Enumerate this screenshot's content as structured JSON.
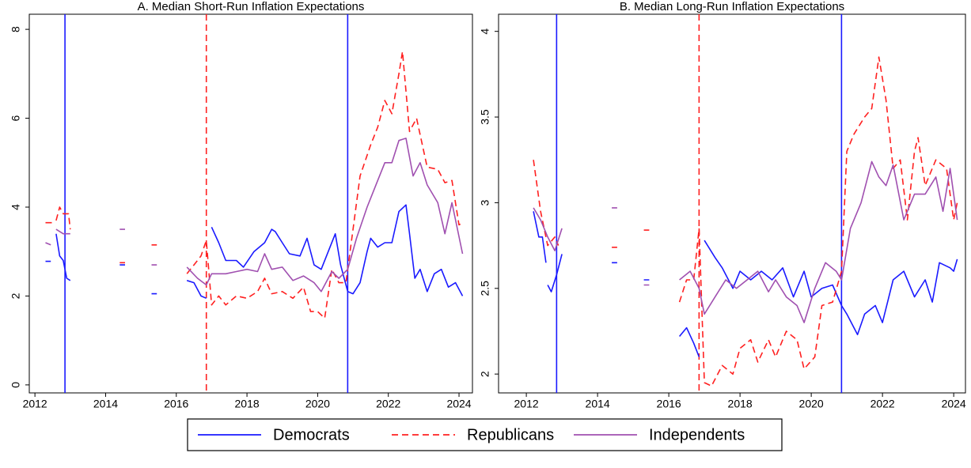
{
  "chart_data": [
    {
      "type": "line",
      "title": "A. Median Short-Run Inflation Expectations",
      "xlim": [
        2011.84,
        2024.38
      ],
      "ylim": [
        -0.18,
        8.34
      ],
      "xticks": [
        2012,
        2014,
        2016,
        2018,
        2020,
        2022,
        2024
      ],
      "yticks": [
        0,
        2,
        4,
        6,
        8
      ],
      "vlines": [
        {
          "x": 2012.85,
          "color": "#1a1aff"
        },
        {
          "x": 2016.85,
          "color": "#ff2020",
          "dash": true
        },
        {
          "x": 2020.85,
          "color": "#1a1aff"
        }
      ],
      "series": [
        {
          "name": "Democrats",
          "color": "#1a1aff",
          "x": [
            2012.3,
            2012.45,
            null,
            2012.6,
            2012.7,
            2012.8,
            2012.9,
            2013.0,
            null,
            2014.4,
            2014.55,
            null,
            2015.3,
            2015.45,
            null,
            2016.3,
            2016.5,
            2016.7,
            2016.85,
            null,
            2017.0,
            2017.2,
            2017.4,
            2017.7,
            2017.9,
            2018.2,
            2018.5,
            2018.7,
            2018.8,
            2019.0,
            2019.2,
            2019.5,
            2019.7,
            2019.9,
            2020.1,
            2020.3,
            2020.5,
            2020.65,
            2020.85,
            2021.0,
            2021.2,
            2021.4,
            2021.5,
            2021.7,
            2021.9,
            2022.1,
            2022.3,
            2022.5,
            2022.6,
            2022.75,
            2022.9,
            2023.1,
            2023.3,
            2023.5,
            2023.7,
            2023.9,
            2024.1
          ],
          "values": [
            2.78,
            2.78,
            null,
            3.4,
            2.9,
            2.8,
            2.4,
            2.35,
            null,
            2.7,
            2.7,
            null,
            2.05,
            2.05,
            null,
            2.35,
            2.3,
            2.0,
            1.95,
            null,
            3.55,
            3.2,
            2.8,
            2.8,
            2.65,
            3.0,
            3.2,
            3.5,
            3.45,
            3.2,
            2.95,
            2.9,
            3.3,
            2.7,
            2.6,
            3.0,
            3.4,
            2.7,
            2.1,
            2.05,
            2.3,
            3.0,
            3.3,
            3.1,
            3.2,
            3.2,
            3.9,
            4.05,
            3.4,
            2.4,
            2.6,
            2.1,
            2.5,
            2.6,
            2.2,
            2.3,
            2.0
          ]
        },
        {
          "name": "Republicans",
          "color": "#ff2020",
          "dash": true,
          "x": [
            2012.3,
            2012.5,
            null,
            2012.6,
            2012.7,
            2012.8,
            2012.95,
            2013.0,
            null,
            2014.4,
            2014.55,
            null,
            2015.3,
            2015.45,
            null,
            2016.3,
            2016.5,
            2016.7,
            2016.85,
            2017.0,
            2017.2,
            2017.4,
            2017.7,
            2018.0,
            2018.3,
            2018.5,
            2018.7,
            2019.0,
            2019.3,
            2019.6,
            2019.8,
            2020.0,
            2020.2,
            2020.4,
            2020.6,
            2020.8,
            2021.0,
            2021.2,
            2021.5,
            2021.7,
            2021.9,
            2022.1,
            2022.3,
            2022.4,
            2022.6,
            2022.8,
            2023.1,
            2023.4,
            2023.6,
            2023.8,
            2024.0,
            2024.1
          ],
          "values": [
            3.65,
            3.65,
            null,
            3.7,
            4.0,
            3.85,
            3.85,
            3.5,
            null,
            2.75,
            2.75,
            null,
            3.15,
            3.15,
            null,
            2.5,
            2.7,
            2.9,
            3.25,
            1.8,
            2.0,
            1.8,
            2.0,
            1.95,
            2.1,
            2.4,
            2.05,
            2.1,
            1.95,
            2.2,
            1.65,
            1.65,
            1.5,
            2.6,
            2.3,
            2.3,
            3.5,
            4.7,
            5.4,
            5.8,
            6.4,
            6.1,
            7.0,
            7.5,
            5.7,
            6.0,
            4.9,
            4.85,
            4.55,
            4.6,
            3.6,
            3.65
          ]
        },
        {
          "name": "Independents",
          "color": "#a050b0",
          "x": [
            2012.3,
            2012.45,
            null,
            2012.6,
            2012.8,
            2013.0,
            null,
            2014.4,
            2014.55,
            null,
            2015.3,
            2015.45,
            null,
            2016.3,
            2016.6,
            2016.85,
            2017.0,
            2017.4,
            2017.7,
            2018.0,
            2018.3,
            2018.5,
            2018.7,
            2019.0,
            2019.3,
            2019.6,
            2019.9,
            2020.1,
            2020.4,
            2020.6,
            2020.85,
            2021.1,
            2021.4,
            2021.7,
            2021.9,
            2022.1,
            2022.3,
            2022.5,
            2022.7,
            2022.9,
            2023.1,
            2023.4,
            2023.6,
            2023.8,
            2024.1
          ],
          "values": [
            3.2,
            3.15,
            null,
            3.5,
            3.4,
            3.4,
            null,
            3.5,
            3.5,
            null,
            2.7,
            2.7,
            null,
            2.65,
            2.4,
            2.25,
            2.5,
            2.5,
            2.55,
            2.6,
            2.55,
            2.95,
            2.6,
            2.65,
            2.35,
            2.45,
            2.3,
            2.1,
            2.55,
            2.4,
            2.6,
            3.3,
            4.0,
            4.6,
            5.0,
            5.0,
            5.5,
            5.55,
            4.7,
            5.0,
            4.5,
            4.1,
            3.4,
            4.1,
            2.95
          ]
        }
      ]
    },
    {
      "type": "line",
      "title": "B. Median Long-Run Inflation Expectations",
      "xlim": [
        2011.22,
        2024.33
      ],
      "ylim": [
        1.89,
        4.1
      ],
      "xticks": [
        2012,
        2014,
        2016,
        2018,
        2020,
        2022,
        2024
      ],
      "yticks": [
        2,
        2.5,
        3,
        3.5,
        4
      ],
      "vlines": [
        {
          "x": 2012.85,
          "color": "#1a1aff"
        },
        {
          "x": 2016.85,
          "color": "#ff2020",
          "dash": true
        },
        {
          "x": 2020.85,
          "color": "#1a1aff"
        }
      ],
      "series": [
        {
          "name": "Democrats",
          "color": "#1a1aff",
          "x": [
            2012.2,
            2012.35,
            2012.45,
            2012.55,
            null,
            2012.6,
            2012.7,
            2012.85,
            2013.0,
            null,
            2014.4,
            2014.55,
            null,
            2015.3,
            2015.45,
            null,
            2016.3,
            2016.5,
            2016.7,
            2016.85,
            null,
            2017.0,
            2017.3,
            2017.5,
            2017.8,
            2018.0,
            2018.3,
            2018.6,
            2018.9,
            2019.2,
            2019.5,
            2019.8,
            2020.0,
            2020.3,
            2020.6,
            2020.85,
            2021.0,
            2021.3,
            2021.5,
            2021.8,
            2022.0,
            2022.3,
            2022.6,
            2022.9,
            2023.2,
            2023.4,
            2023.6,
            2023.9,
            2024.0,
            2024.1
          ],
          "values": [
            2.95,
            2.8,
            2.8,
            2.65,
            null,
            2.52,
            2.48,
            2.58,
            2.7,
            null,
            2.65,
            2.65,
            null,
            2.55,
            2.55,
            null,
            2.22,
            2.27,
            2.18,
            2.1,
            null,
            2.78,
            2.68,
            2.62,
            2.5,
            2.6,
            2.55,
            2.6,
            2.55,
            2.62,
            2.45,
            2.6,
            2.45,
            2.5,
            2.52,
            2.4,
            2.35,
            2.23,
            2.35,
            2.4,
            2.3,
            2.55,
            2.6,
            2.45,
            2.55,
            2.42,
            2.65,
            2.62,
            2.6,
            2.67
          ]
        },
        {
          "name": "Republicans",
          "color": "#ff2020",
          "dash": true,
          "x": [
            2012.2,
            2012.4,
            2012.6,
            2012.8,
            2012.9,
            null,
            2014.4,
            2014.55,
            null,
            2015.3,
            2015.45,
            null,
            2016.3,
            2016.5,
            2016.7,
            2016.85,
            2017.0,
            2017.2,
            2017.5,
            2017.8,
            2018.0,
            2018.3,
            2018.5,
            2018.8,
            2019.0,
            2019.3,
            2019.6,
            2019.8,
            2020.1,
            2020.3,
            2020.6,
            2020.85,
            2021.0,
            2021.2,
            2021.5,
            2021.7,
            2021.9,
            2022.1,
            2022.3,
            2022.5,
            2022.7,
            2022.9,
            2023.0,
            2023.2,
            2023.5,
            2023.8,
            2024.0,
            2024.1
          ],
          "values": [
            3.25,
            2.95,
            2.75,
            2.8,
            2.75,
            null,
            2.74,
            2.74,
            null,
            2.84,
            2.84,
            null,
            2.42,
            2.55,
            2.55,
            2.85,
            1.95,
            1.93,
            2.05,
            2.0,
            2.15,
            2.2,
            2.07,
            2.2,
            2.1,
            2.25,
            2.2,
            2.03,
            2.1,
            2.4,
            2.42,
            2.6,
            3.3,
            3.4,
            3.5,
            3.55,
            3.85,
            3.6,
            3.2,
            3.25,
            2.9,
            3.3,
            3.38,
            3.1,
            3.25,
            3.2,
            2.9,
            3.0
          ]
        },
        {
          "name": "Independents",
          "color": "#a050b0",
          "x": [
            2012.2,
            2012.4,
            2012.6,
            2012.8,
            2013.0,
            null,
            2014.4,
            2014.55,
            null,
            2015.3,
            2015.45,
            null,
            2016.3,
            2016.6,
            2016.85,
            2017.0,
            2017.3,
            2017.6,
            2017.9,
            2018.2,
            2018.5,
            2018.8,
            2019.0,
            2019.3,
            2019.6,
            2019.8,
            2020.1,
            2020.4,
            2020.7,
            2020.85,
            2021.1,
            2021.4,
            2021.7,
            2021.9,
            2022.1,
            2022.3,
            2022.6,
            2022.9,
            2023.2,
            2023.5,
            2023.7,
            2023.9,
            2024.1
          ],
          "values": [
            2.97,
            2.9,
            2.8,
            2.72,
            2.85,
            null,
            2.97,
            2.97,
            null,
            2.52,
            2.52,
            null,
            2.55,
            2.6,
            2.5,
            2.35,
            2.45,
            2.55,
            2.5,
            2.55,
            2.6,
            2.48,
            2.55,
            2.45,
            2.4,
            2.3,
            2.5,
            2.65,
            2.6,
            2.55,
            2.85,
            3.0,
            3.24,
            3.15,
            3.1,
            3.22,
            2.9,
            3.05,
            3.05,
            3.15,
            2.95,
            3.2,
            2.9
          ]
        }
      ]
    }
  ]
}
